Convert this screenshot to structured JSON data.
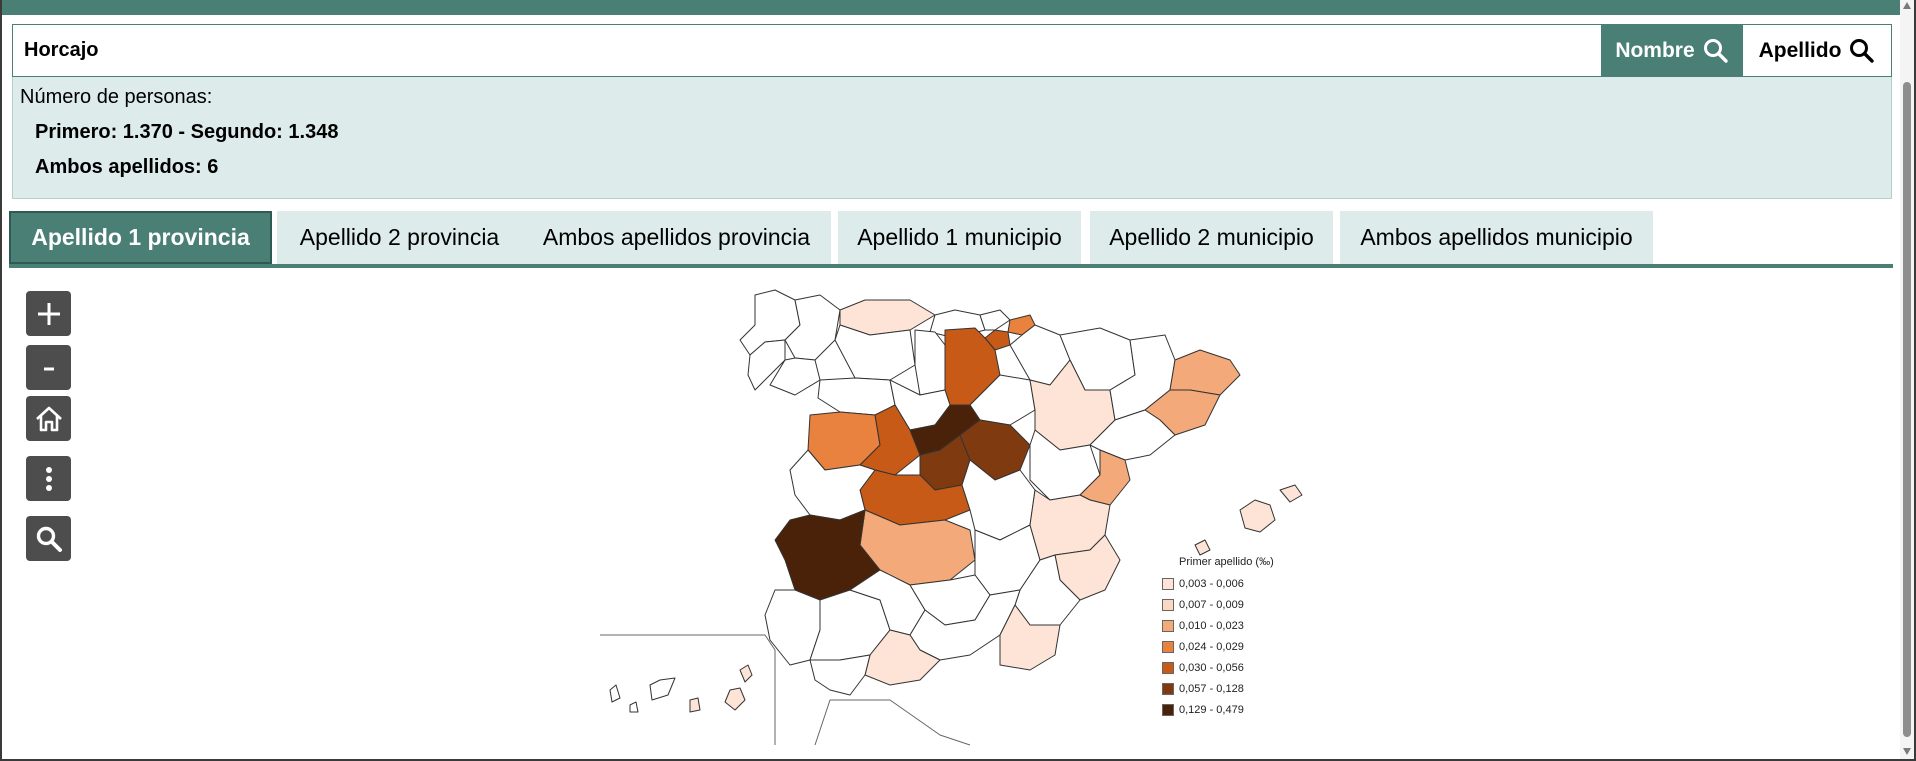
{
  "search": {
    "value": "Horcajo"
  },
  "buttons": {
    "nombre": "Nombre",
    "apellido": "Apellido"
  },
  "info": {
    "label": "Número de personas:",
    "line1": "Primero: 1.370 - Segundo: 1.348",
    "line2": "Ambos apellidos: 6"
  },
  "tabs": [
    {
      "label": "Apellido 1 provincia",
      "active": true
    },
    {
      "label": "Apellido 2 provincia",
      "active": false
    },
    {
      "label": "Ambos apellidos provincia",
      "active": false
    },
    {
      "label": "Apellido 1 municipio",
      "active": false
    },
    {
      "label": "Apellido 2 municipio",
      "active": false
    },
    {
      "label": "Ambos apellidos municipio",
      "active": false
    }
  ],
  "tools": [
    "plus-icon",
    "minus-icon",
    "home-icon",
    "more-vertical-icon",
    "search-icon"
  ],
  "legend": {
    "title": "Primer apellido (‰)",
    "items": [
      {
        "label": "0,003 - 0,006",
        "color": "#fde4d6"
      },
      {
        "label": "0,007 - 0,009",
        "color": "#fcd8c4"
      },
      {
        "label": "0,010 - 0,023",
        "color": "#f3a97a"
      },
      {
        "label": "0,024 - 0,029",
        "color": "#e9823e"
      },
      {
        "label": "0,030 - 0,056",
        "color": "#c85a17"
      },
      {
        "label": "0,057 - 0,128",
        "color": "#7f3a10"
      },
      {
        "label": "0,129 - 0,479",
        "color": "#4a220a"
      }
    ]
  },
  "colors": {
    "accent": "#4a7f76",
    "panel": "#ddecea"
  }
}
